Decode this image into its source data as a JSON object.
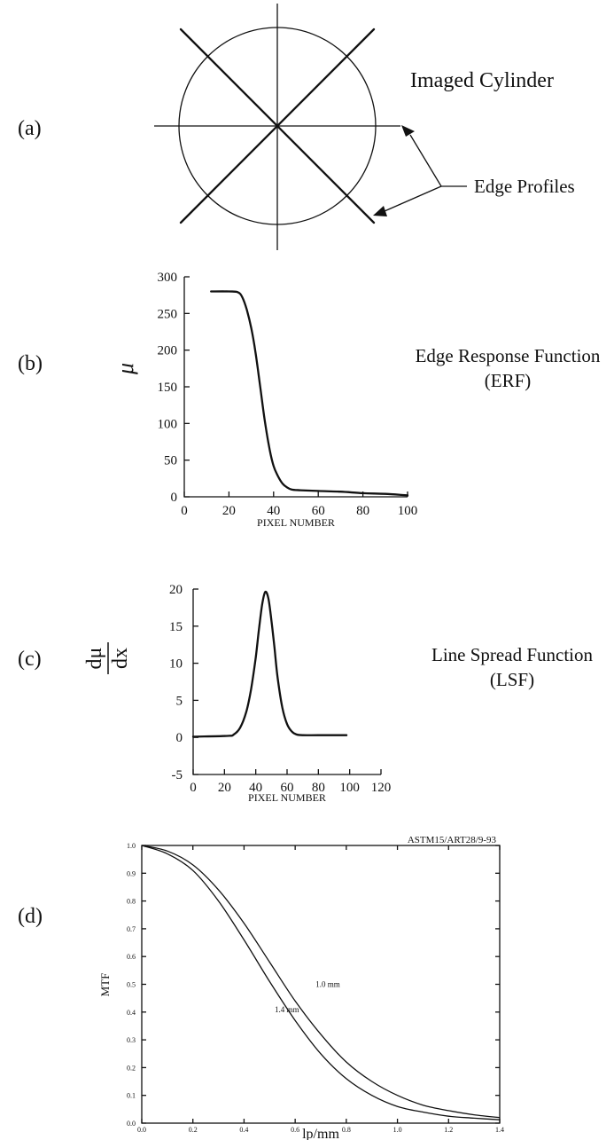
{
  "panels": {
    "a": {
      "label": "(a)",
      "title": "Imaged Cylinder",
      "annotation": "Edge Profiles"
    },
    "b": {
      "label": "(b)",
      "caption_line1": "Edge Response Function",
      "caption_line2": "(ERF)"
    },
    "c": {
      "label": "(c)",
      "caption_line1": "Line Spread Function",
      "caption_line2": "(LSF)",
      "ylabel_num": "dμ",
      "ylabel_den": "dx"
    },
    "d": {
      "label": "(d)",
      "corner_note": "ASTM15/ART28/9-93"
    }
  },
  "chart_data": [
    {
      "id": "b",
      "type": "line",
      "xlabel": "PIXEL NUMBER",
      "ylabel": "μ",
      "xlim": [
        0,
        100
      ],
      "ylim": [
        0,
        300
      ],
      "xticks": [
        0,
        20,
        40,
        60,
        80,
        100
      ],
      "yticks": [
        0,
        50,
        100,
        150,
        200,
        250,
        300
      ],
      "grid": false,
      "series": [
        {
          "x": [
            12,
            20,
            24,
            26,
            28,
            30,
            32,
            34,
            36,
            38,
            40,
            42,
            44,
            46,
            48,
            52,
            60,
            70,
            80,
            90,
            100
          ],
          "y": [
            280,
            280,
            279,
            272,
            255,
            230,
            195,
            150,
            105,
            68,
            42,
            28,
            18,
            13,
            10,
            9,
            8,
            7,
            5,
            4,
            2
          ]
        }
      ]
    },
    {
      "id": "c",
      "type": "line",
      "xlabel": "PIXEL NUMBER",
      "xlim": [
        0,
        120
      ],
      "ylim": [
        -5,
        20
      ],
      "xticks": [
        0,
        20,
        40,
        60,
        80,
        100,
        120
      ],
      "yticks": [
        -5,
        0,
        5,
        10,
        15,
        20
      ],
      "grid": false,
      "series": [
        {
          "x": [
            0,
            22,
            26,
            30,
            34,
            37,
            40,
            42,
            44,
            46,
            48,
            50,
            52,
            54,
            57,
            60,
            63,
            66,
            70,
            80,
            98
          ],
          "y": [
            0.1,
            0.2,
            0.4,
            1.3,
            3.5,
            6.5,
            10.8,
            14.5,
            17.8,
            19.6,
            18.8,
            15.8,
            12.0,
            8.0,
            4.0,
            1.8,
            0.8,
            0.4,
            0.3,
            0.3,
            0.3
          ]
        }
      ]
    },
    {
      "id": "d",
      "type": "line",
      "xlabel": "lp/mm",
      "ylabel": "MTF",
      "xlim": [
        0,
        1.4
      ],
      "ylim": [
        0,
        1.0
      ],
      "xticks": [
        "0.0",
        "0.2",
        "0.4",
        "0.6",
        "0.8",
        "1.0",
        "1.2",
        "1.4"
      ],
      "yticks": [
        "0.0",
        "0.1",
        "0.2",
        "0.3",
        "0.4",
        "0.5",
        "0.6",
        "0.7",
        "0.8",
        "0.9",
        "1.0"
      ],
      "grid": false,
      "series": [
        {
          "name": "1.0 mm",
          "x": [
            0,
            0.1,
            0.2,
            0.3,
            0.4,
            0.5,
            0.6,
            0.7,
            0.8,
            0.9,
            1.0,
            1.1,
            1.2,
            1.3,
            1.4
          ],
          "y": [
            1.0,
            0.98,
            0.93,
            0.84,
            0.72,
            0.58,
            0.44,
            0.32,
            0.22,
            0.15,
            0.1,
            0.065,
            0.045,
            0.03,
            0.02
          ]
        },
        {
          "name": "1.4 mm",
          "x": [
            0,
            0.1,
            0.2,
            0.3,
            0.4,
            0.5,
            0.6,
            0.7,
            0.8,
            0.9,
            1.0,
            1.1,
            1.2,
            1.3,
            1.4
          ],
          "y": [
            1.0,
            0.97,
            0.91,
            0.8,
            0.66,
            0.51,
            0.37,
            0.25,
            0.16,
            0.1,
            0.06,
            0.04,
            0.025,
            0.018,
            0.012
          ]
        }
      ]
    }
  ]
}
